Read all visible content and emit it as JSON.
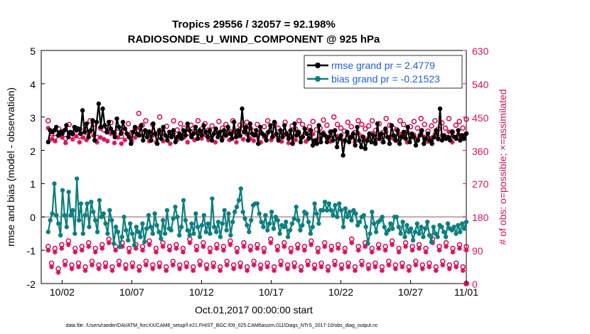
{
  "chart_data": {
    "type": "line",
    "title": "Tropics 29556 / 32057 = 92.198%",
    "subtitle": "RADIOSONDE_U_WIND_COMPONENT @ 925 hPa",
    "xlabel": "Oct.01,2017 00:00:00 start",
    "ylabel": "rmse and bias (model - observation)",
    "y2label": "# of obs: o=possible; ×=assimilated",
    "footnote": "data file: /Users/raeder/DAI/ATM_forcXX/CAM6_setup/f.e21.FHIST_BGC.f09_025.CAM6assim.011/Diags_NTrS_2017-10/obs_diag_output.nc",
    "xlim": [
      0.5,
      31
    ],
    "ylim": [
      -2,
      5
    ],
    "y2lim": [
      0,
      630
    ],
    "xtick_positions": [
      2,
      7,
      12,
      17,
      22,
      27,
      31
    ],
    "xtick_labels": [
      "10/02",
      "10/07",
      "10/12",
      "10/17",
      "10/22",
      "10/27",
      "11/01"
    ],
    "yticks": [
      "-2",
      "-1",
      "0",
      "1",
      "2",
      "3",
      "4",
      "5"
    ],
    "y2ticks": [
      "0",
      "90",
      "180",
      "270",
      "360",
      "450",
      "540",
      "630"
    ],
    "colors": {
      "rmse": "#000000",
      "bias": "#0e7f7f",
      "obs": "#d6135b",
      "zero": "#bfa0a0",
      "legend_text": "#1f5fd8"
    },
    "series": [
      {
        "name": "rmse grand pr = 2.4779",
        "values": [
          2.25,
          2.6,
          2.55,
          2.6,
          2.7,
          2.45,
          2.55,
          2.5,
          2.6,
          2.75,
          2.4,
          2.55,
          2.5,
          2.7,
          2.6,
          2.65,
          2.5,
          3.2,
          2.55,
          2.8,
          2.4,
          2.6,
          2.9,
          2.3,
          2.85,
          3.4,
          2.7,
          3.25,
          2.75,
          2.55,
          2.85,
          2.65,
          2.55,
          2.4,
          2.95,
          2.7,
          2.5,
          2.85,
          2.65,
          2.5,
          2.4,
          2.2,
          2.55,
          2.7,
          2.5,
          2.45,
          2.75,
          2.3,
          2.6,
          2.4,
          2.55,
          2.3,
          2.8,
          2.5,
          2.2,
          2.6,
          2.35,
          2.7,
          2.45,
          2.3,
          2.55,
          2.4,
          2.6,
          2.25,
          2.4,
          2.5,
          2.35,
          2.6,
          2.45,
          2.8,
          2.6,
          2.4,
          2.5,
          2.7,
          2.35,
          2.6,
          2.45,
          2.75,
          2.55,
          2.4,
          2.6,
          2.3,
          2.5,
          2.65,
          2.4,
          2.55,
          2.3,
          2.6,
          2.45,
          2.7,
          2.5,
          2.35,
          2.85,
          2.4,
          2.6,
          2.45,
          3.25,
          2.55,
          2.7,
          2.3,
          2.8,
          2.5,
          2.45,
          2.6,
          2.2,
          2.7,
          2.5,
          2.45,
          2.3,
          2.55,
          2.75,
          2.4,
          2.85,
          2.5,
          2.3,
          2.6,
          2.4,
          2.75,
          2.5,
          2.35,
          2.6,
          2.2,
          2.8,
          2.45,
          2.55,
          2.25,
          2.4,
          2.65,
          2.5,
          2.35,
          2.6,
          2.15,
          2.3,
          2.2,
          2.75,
          2.25,
          2.5,
          2.45,
          2.25,
          2.4,
          2.55,
          2.3,
          2.6,
          2.1,
          2.35,
          2.45,
          1.85,
          2.3,
          2.55,
          2.25,
          2.4,
          2.5,
          2.15,
          2.7,
          2.3,
          2.1,
          2.4,
          2.05,
          2.3,
          2.5,
          2.25,
          2.45,
          2.2,
          2.8,
          2.35,
          2.5,
          2.25,
          2.65,
          2.4,
          2.2,
          2.75,
          2.45,
          2.3,
          2.6,
          2.2,
          2.4,
          2.55,
          2.35,
          2.7,
          2.25,
          2.5,
          2.4,
          2.15,
          2.3,
          2.45,
          2.6,
          2.2,
          2.35,
          2.5,
          2.3,
          2.2,
          2.4,
          2.6,
          2.35,
          3.25,
          2.3,
          2.45,
          2.35,
          2.4,
          2.3,
          2.55,
          2.4,
          2.35,
          2.6,
          2.3,
          2.45,
          2.35,
          2.5
        ]
      },
      {
        "name": "bias grand pr = -0.21523",
        "values": [
          -0.45,
          -0.1,
          0.1,
          1.0,
          0.05,
          -0.2,
          -0.55,
          0.8,
          0.05,
          -0.3,
          0.75,
          0.05,
          0.2,
          -0.5,
          1.15,
          -0.1,
          0.4,
          -0.5,
          0.05,
          0.4,
          -0.3,
          0.45,
          0.15,
          -0.1,
          -0.45,
          0.5,
          0.0,
          0.1,
          -0.2,
          -0.5,
          0.2,
          -0.1,
          -0.8,
          -0.3,
          -0.45,
          -0.9,
          -0.6,
          0.0,
          -0.4,
          -0.7,
          -0.2,
          -0.5,
          -0.85,
          -0.3,
          -0.45,
          -0.6,
          -0.2,
          -0.75,
          -0.35,
          0.05,
          -0.3,
          -0.5,
          0.1,
          -0.25,
          -0.45,
          -0.65,
          -0.1,
          -0.5,
          0.2,
          -0.35,
          -0.4,
          -0.05,
          0.3,
          0.0,
          -0.55,
          -0.3,
          0.5,
          -0.1,
          -0.4,
          -0.55,
          -0.2,
          -0.5,
          0.1,
          -0.3,
          -0.6,
          -0.25,
          0.05,
          -0.45,
          -0.2,
          -0.5,
          0.55,
          -0.3,
          -0.45,
          -0.15,
          -0.6,
          -0.2,
          0.2,
          -0.4,
          0.1,
          -0.55,
          -0.15,
          0.15,
          0.3,
          0.5,
          0.85,
          0.15,
          -0.05,
          -0.25,
          -0.45,
          -0.1,
          0.35,
          0.4,
          0.4,
          0.1,
          -0.15,
          -0.3,
          0.05,
          -0.4,
          -0.2,
          0.15,
          -0.35,
          0.0,
          -0.1,
          -0.5,
          -0.25,
          -0.3,
          -0.15,
          -0.6,
          -0.4,
          -0.2,
          -0.05,
          0.3,
          -0.1,
          -0.4,
          -0.25,
          0.15,
          0.1,
          -0.15,
          -0.5,
          -0.3,
          0.4,
          0.1,
          -0.2,
          0.2,
          0.2,
          0.45,
          0.2,
          0.4,
          0.2,
          0.05,
          0.35,
          0.0,
          0.4,
          0.2,
          -0.3,
          0.25,
          0.0,
          0.15,
          -0.1,
          0.2,
          0.1,
          -0.25,
          -0.15,
          0.0,
          0.05,
          -0.3,
          -0.8,
          -0.5,
          0.15,
          -0.2,
          -0.45,
          -0.15,
          -0.1,
          0.0,
          -0.3,
          -0.5,
          -0.4,
          -0.2,
          -0.35,
          0.0,
          0.0,
          -0.3,
          -0.5,
          -0.15,
          -0.6,
          -0.25,
          -0.45,
          -0.35,
          -0.7,
          -0.45,
          -0.2,
          -0.5,
          -0.3,
          -0.6,
          -0.35,
          -0.15,
          -0.55,
          -0.75,
          -0.3,
          -0.5,
          -0.6,
          -0.25,
          -0.3,
          -0.45,
          -0.6,
          -0.2,
          -0.35,
          -0.4,
          -0.3,
          -0.5,
          -0.25,
          -0.45,
          -0.2,
          -0.35,
          -0.15
        ]
      }
    ],
    "obs_possible_rmse": [
      440,
      405,
      395,
      418,
      410,
      392,
      430,
      405,
      420,
      398,
      412,
      408,
      440,
      430,
      395,
      420,
      415,
      410,
      435,
      405,
      420,
      398,
      412,
      432,
      408,
      420,
      460,
      428,
      440,
      410,
      430,
      405,
      450,
      410,
      425,
      400,
      440,
      415,
      432,
      420,
      406,
      428,
      412,
      440,
      418,
      432,
      415,
      426,
      410,
      438,
      420,
      430,
      412,
      440,
      406,
      428,
      418,
      436,
      420,
      412,
      430,
      408,
      424,
      440,
      416,
      432,
      420,
      410,
      436,
      406,
      426,
      418,
      440,
      430,
      412,
      424,
      438,
      416,
      420,
      442,
      428,
      410,
      450,
      430,
      420,
      412,
      436,
      424,
      408,
      440,
      430,
      418,
      426,
      440,
      414,
      432,
      408,
      446,
      428,
      420,
      416,
      440,
      430,
      410,
      424,
      438,
      420,
      446,
      430,
      412,
      426,
      440,
      418,
      434,
      420,
      446,
      410,
      428,
      438,
      420,
      444
    ],
    "obs_assimilated_rmse": [
      420,
      390,
      385,
      400,
      395,
      380,
      405,
      390,
      398,
      382,
      395,
      388,
      410,
      400,
      382,
      395,
      390,
      385,
      405,
      380,
      395,
      378,
      388,
      402,
      385,
      395,
      420,
      400,
      410,
      385,
      400,
      382,
      415,
      385,
      398,
      378,
      405,
      388,
      400,
      395,
      382,
      400,
      388,
      410,
      392,
      402,
      388,
      398,
      382,
      405,
      392,
      400,
      388,
      410,
      382,
      398,
      390,
      404,
      392,
      386,
      400,
      382,
      396,
      408,
      388,
      400,
      392,
      384,
      402,
      380,
      396,
      388,
      406,
      398,
      384,
      394,
      404,
      388,
      392,
      408,
      396,
      384,
      412,
      398,
      392,
      384,
      402,
      394,
      382,
      406,
      398,
      388,
      396,
      406,
      386,
      400,
      382,
      410,
      396,
      392,
      386,
      404,
      396,
      382,
      394,
      402,
      392,
      410,
      396,
      384,
      394,
      404,
      390,
      400,
      392,
      410,
      382,
      396,
      402,
      392,
      406
    ],
    "obs_possible_bias": [
      100,
      55,
      95,
      40,
      105,
      60,
      115,
      50,
      95,
      55,
      100,
      45,
      110,
      60,
      95,
      50,
      105,
      55,
      120,
      45,
      100,
      60,
      110,
      50,
      95,
      55,
      105,
      45,
      100,
      60,
      115,
      50,
      95,
      55,
      110,
      45,
      100,
      60,
      105,
      50,
      95,
      55,
      120,
      45,
      100,
      60,
      110,
      50,
      95,
      55,
      105,
      45,
      100,
      60,
      115,
      50,
      95,
      55,
      110,
      45,
      100,
      60,
      105,
      50,
      95,
      55,
      120,
      45,
      100,
      60,
      110,
      50,
      95,
      55,
      105,
      45,
      100,
      60,
      115,
      50,
      95,
      55,
      110,
      45,
      100,
      60,
      105,
      50,
      95,
      55,
      120,
      45,
      100,
      60,
      110,
      50,
      95,
      55,
      105,
      45,
      100,
      60,
      115,
      50,
      95,
      55,
      110,
      45,
      100,
      60,
      105,
      50,
      95,
      55,
      120,
      45,
      100,
      60,
      110,
      50,
      95,
      55,
      105,
      45,
      100
    ],
    "obs_assimilated_bias": [
      90,
      45,
      85,
      30,
      95,
      50,
      105,
      40,
      85,
      45,
      90,
      35,
      100,
      50,
      85,
      40,
      95,
      45,
      110,
      35,
      90,
      50,
      100,
      40,
      85,
      45,
      95,
      35,
      90,
      50,
      105,
      40,
      85,
      45,
      100,
      35,
      90,
      50,
      95,
      40,
      85,
      45,
      110,
      35,
      90,
      50,
      100,
      40,
      85,
      45,
      95,
      35,
      90,
      50,
      105,
      40,
      85,
      45,
      100,
      35,
      90,
      50,
      95,
      40,
      85,
      45,
      110,
      35,
      90,
      50,
      100,
      40,
      85,
      45,
      95,
      35,
      90,
      50,
      105,
      40,
      85,
      45,
      100,
      35,
      90,
      50,
      95,
      40,
      85,
      45,
      110,
      35,
      90,
      50,
      100,
      40,
      85,
      45,
      95,
      35,
      90,
      50,
      105,
      40,
      85,
      45,
      100,
      35,
      90,
      50,
      95,
      40,
      85,
      45,
      110,
      35,
      90,
      50,
      100,
      40,
      85,
      45,
      95,
      35,
      90
    ]
  }
}
